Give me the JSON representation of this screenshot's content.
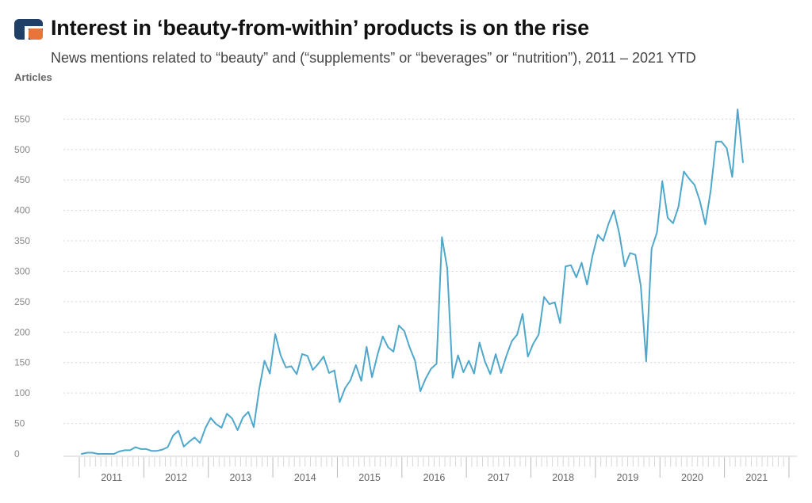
{
  "header": {
    "title": "Interest in ‘beauty-from-within’ products is on the rise",
    "subtitle": "News mentions related to “beauty” and (“supplements” or “beverages” or “nutrition”), 2011 – 2021 YTD"
  },
  "colors": {
    "line": "#4fa8cc",
    "logo_blue": "#1f3f66",
    "logo_orange": "#e8743b",
    "grid": "#d8d8d8"
  },
  "chart_data": {
    "type": "line",
    "title": "Interest in ‘beauty-from-within’ products is on the rise",
    "subtitle": "News mentions related to “beauty” and (“supplements” or “beverages” or “nutrition”), 2011 – 2021 YTD",
    "ylabel": "Articles",
    "xlabel": "",
    "ylim": [
      0,
      575
    ],
    "yticks": [
      0,
      50,
      100,
      150,
      200,
      250,
      300,
      350,
      400,
      450,
      500,
      550
    ],
    "years": [
      "2011",
      "2012",
      "2013",
      "2014",
      "2015",
      "2016",
      "2017",
      "2018",
      "2019",
      "2020",
      "2021"
    ],
    "grid": true,
    "legend": "none",
    "x_start": "2011-01",
    "x_interval": "month",
    "series": [
      {
        "values": [
          0,
          2,
          2,
          0,
          0,
          0,
          0,
          4,
          6,
          6,
          11,
          8,
          8,
          5,
          5,
          7,
          11,
          30,
          38,
          12,
          20,
          27,
          18,
          42,
          59,
          49,
          43,
          66,
          58,
          39,
          60,
          69,
          44,
          105,
          153,
          132,
          197,
          162,
          142,
          144,
          131,
          164,
          161,
          138,
          148,
          160,
          133,
          137,
          85,
          108,
          121,
          146,
          120,
          176,
          126,
          162,
          193,
          175,
          168,
          211,
          202,
          175,
          153,
          103,
          124,
          140,
          148,
          356,
          305,
          125,
          162,
          134,
          153,
          132,
          183,
          152,
          131,
          164,
          133,
          161,
          185,
          196,
          230,
          160,
          181,
          196,
          258,
          246,
          249,
          215,
          308,
          310,
          290,
          314,
          278,
          325,
          360,
          350,
          378,
          400,
          362,
          308,
          330,
          327,
          276,
          152,
          337,
          364,
          448,
          388,
          379,
          406,
          464,
          452,
          442,
          415,
          377,
          433,
          513,
          513,
          502,
          455,
          566,
          479
        ]
      }
    ]
  }
}
